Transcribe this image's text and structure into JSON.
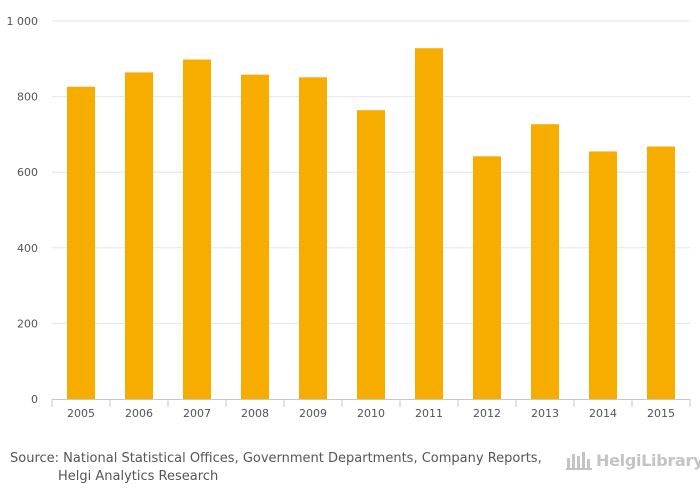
{
  "chart_data": {
    "type": "bar",
    "title": "",
    "xlabel": "",
    "ylabel": "",
    "categories": [
      "2005",
      "2006",
      "2007",
      "2008",
      "2009",
      "2010",
      "2011",
      "2012",
      "2013",
      "2014",
      "2015"
    ],
    "values": [
      826,
      864,
      898,
      858,
      851,
      764,
      928,
      642,
      727,
      655,
      668
    ],
    "ylim": [
      0,
      1000
    ],
    "yticks": [
      0,
      200,
      400,
      600,
      800,
      1000
    ],
    "ytick_labels": [
      "0",
      "200",
      "400",
      "600",
      "800",
      "1 000"
    ],
    "grid": true,
    "bar_color": "#f7ac00"
  },
  "footer": {
    "source_line1": "Source: National Statistical Offices, Government Departments, Company Reports,",
    "source_line2": "Helgi Analytics Research",
    "logo_name": "HelgiLibrary",
    "logo_icon": "building-icon"
  }
}
